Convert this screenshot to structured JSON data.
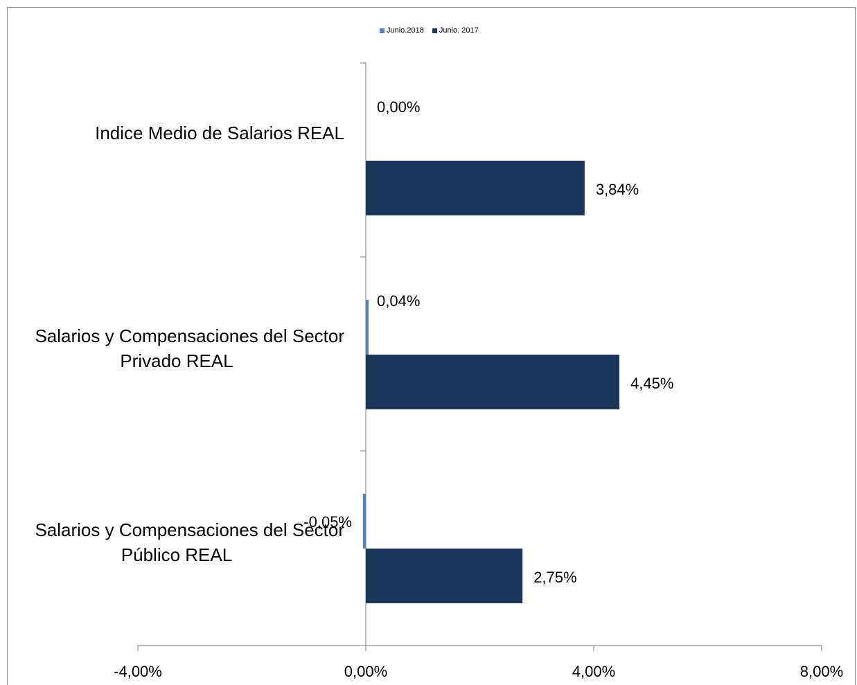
{
  "chart_data": {
    "type": "bar",
    "orientation": "horizontal",
    "categories": [
      [
        "Indice Medio de Salarios REAL"
      ],
      [
        "Salarios y Compensaciones del Sector",
        "Privado REAL"
      ],
      [
        "Salarios y Compensaciones del Sector",
        "Público REAL"
      ]
    ],
    "series": [
      {
        "name": "Junio.2018",
        "color": "#4f81bd",
        "values": [
          0.0,
          0.04,
          -0.05
        ],
        "labels": [
          "0,00%",
          "0,04%",
          "-0,05%"
        ]
      },
      {
        "name": "Junio. 2017",
        "color": "#1b365d",
        "values": [
          3.84,
          4.45,
          2.75
        ],
        "labels": [
          "3,84%",
          "4,45%",
          "2,75%"
        ]
      }
    ],
    "xlim": [
      -4,
      8
    ],
    "xticks": [
      -4,
      0,
      4,
      8
    ],
    "xtick_labels": [
      "-4,00%",
      "0,00%",
      "4,00%",
      "8,00%"
    ],
    "legend_position": "top-center",
    "grid": false
  }
}
